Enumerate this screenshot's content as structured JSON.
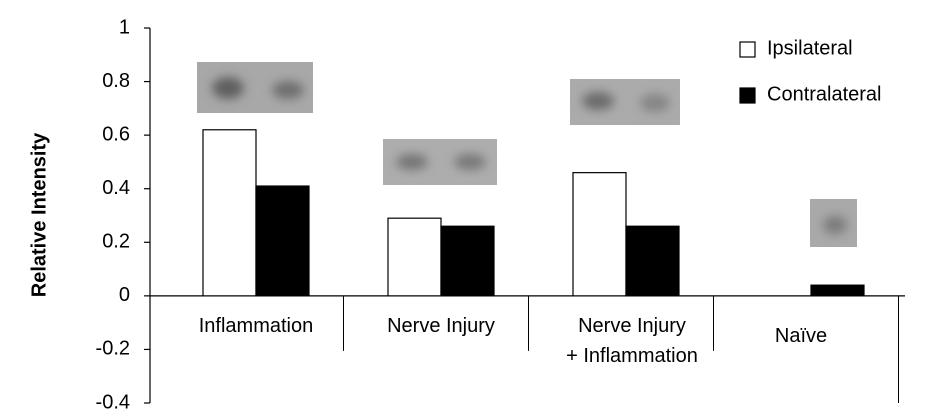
{
  "chart_data": {
    "type": "bar",
    "y_label": "Relative Intensity",
    "categories": [
      "Inflammation",
      "Nerve Injury",
      "Nerve Injury\n+ Inflammation",
      "Naïve"
    ],
    "series": [
      {
        "name": "Ipsilateral",
        "color": "#ffffff",
        "values": [
          0.62,
          0.29,
          0.46,
          0
        ]
      },
      {
        "name": "Contralateral",
        "color": "#000000",
        "values": [
          0.41,
          0.26,
          0.26,
          0.04
        ]
      }
    ],
    "ylim": [
      -0.4,
      1
    ],
    "yticks": [
      -0.4,
      -0.2,
      0,
      0.2,
      0.4,
      0.6,
      0.8,
      1
    ],
    "legend": "top-right",
    "grid": false
  }
}
